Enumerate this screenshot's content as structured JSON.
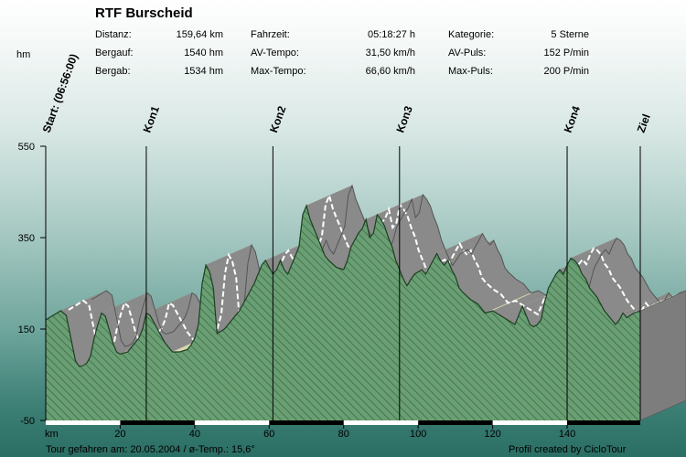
{
  "title": "RTF Burscheid",
  "stats": [
    {
      "label": "Distanz:",
      "value": "159,64 km"
    },
    {
      "label": "Bergauf:",
      "value": "1540 hm"
    },
    {
      "label": "Bergab:",
      "value": "1534 hm"
    },
    {
      "label": "Fahrzeit:",
      "value": "05:18:27 h"
    },
    {
      "label": "AV-Tempo:",
      "value": "31,50 km/h"
    },
    {
      "label": "Max-Tempo:",
      "value": "66,60 km/h"
    },
    {
      "label": "Kategorie:",
      "value": "5 Sterne"
    },
    {
      "label": "AV-Puls:",
      "value": "152 P/min"
    },
    {
      "label": "Max-Puls:",
      "value": "200 P/min"
    }
  ],
  "footer": {
    "left": "Tour gefahren am: 20.05.2004  /  ø-Temp.: 15,6°",
    "right": "Profil created by CicloTour"
  },
  "colors": {
    "fill": "#6b9e74",
    "hatch": "#2f6a3a",
    "slope_light": "#d6d6b0",
    "slope_dark": "#8a8a8a",
    "slope_edge": "#555555"
  },
  "chart_data": {
    "type": "area",
    "title": "RTF Burscheid",
    "xlabel": "km",
    "ylabel": "hm",
    "xlim": [
      0,
      159.64
    ],
    "ylim": [
      -50,
      550
    ],
    "x_ticks": [
      20,
      40,
      60,
      80,
      100,
      120,
      140
    ],
    "y_ticks": [
      -50,
      150,
      350,
      550
    ],
    "x": [
      0,
      2,
      4,
      5.5,
      7,
      8,
      9,
      10,
      11,
      12,
      13,
      14,
      15,
      16,
      17,
      18,
      19,
      20,
      22,
      24,
      25,
      26,
      27,
      28,
      30,
      32,
      34,
      36,
      38,
      39,
      40,
      41,
      42,
      43,
      44,
      45,
      46,
      48,
      50,
      52,
      54,
      56,
      58,
      59,
      60,
      61,
      62,
      63,
      64,
      65,
      66,
      67,
      68,
      69,
      70,
      71,
      72,
      73,
      74,
      75,
      76,
      78,
      80,
      81,
      82,
      84,
      85,
      86,
      87,
      88,
      89,
      90,
      91,
      92,
      93,
      94,
      95,
      96,
      97,
      98,
      99,
      100,
      101,
      102,
      103,
      104,
      105,
      106,
      107,
      108,
      109,
      110,
      111,
      112,
      114,
      116,
      117,
      118,
      120,
      122,
      124,
      126,
      128,
      129,
      130,
      131,
      132,
      133,
      134,
      135,
      136,
      137,
      138,
      139,
      140,
      141,
      142,
      143,
      144,
      145,
      146,
      147,
      148,
      150,
      152,
      153,
      154,
      155,
      156,
      157,
      158,
      159.64
    ],
    "y": [
      170,
      180,
      190,
      180,
      120,
      80,
      68,
      70,
      75,
      90,
      130,
      160,
      185,
      178,
      150,
      120,
      100,
      95,
      100,
      120,
      130,
      150,
      185,
      180,
      150,
      120,
      100,
      100,
      105,
      115,
      130,
      160,
      250,
      290,
      275,
      240,
      140,
      150,
      170,
      190,
      220,
      250,
      290,
      300,
      285,
      270,
      280,
      300,
      280,
      270,
      290,
      310,
      330,
      400,
      420,
      390,
      370,
      350,
      330,
      310,
      300,
      285,
      280,
      300,
      330,
      360,
      370,
      390,
      350,
      360,
      400,
      390,
      375,
      350,
      330,
      300,
      280,
      260,
      245,
      258,
      270,
      275,
      280,
      270,
      285,
      300,
      315,
      300,
      290,
      300,
      280,
      265,
      240,
      230,
      215,
      205,
      195,
      185,
      190,
      180,
      170,
      160,
      200,
      180,
      160,
      155,
      160,
      170,
      210,
      240,
      255,
      270,
      280,
      270,
      290,
      305,
      300,
      290,
      270,
      260,
      240,
      230,
      220,
      190,
      170,
      160,
      170,
      185,
      175,
      180,
      185,
      190
    ],
    "markers": [
      {
        "label": "Start: (06:56:00)",
        "x": 0
      },
      {
        "label": "Kon1",
        "x": 27
      },
      {
        "label": "Kon2",
        "x": 61
      },
      {
        "label": "Kon3",
        "x": 95
      },
      {
        "label": "Kon4",
        "x": 140
      },
      {
        "label": "Ziel",
        "x": 159.64
      }
    ],
    "grid": false,
    "legend": "none"
  }
}
